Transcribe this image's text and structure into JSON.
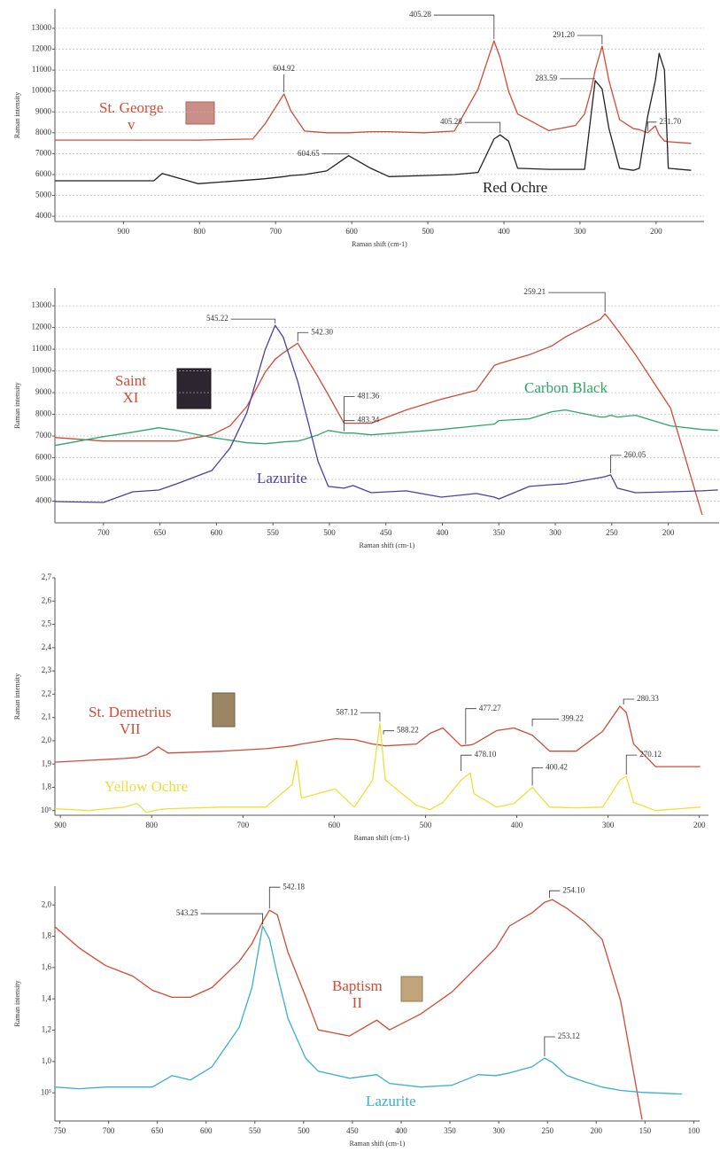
{
  "chart_data": [
    {
      "type": "line",
      "xlabel": "Raman shift (cm-1)",
      "ylabel": "Raman intensity",
      "xlim": [
        990,
        137
      ],
      "ylim": [
        3750,
        13930
      ],
      "grid": true,
      "xticks": [
        900,
        800,
        700,
        600,
        500,
        400,
        300,
        200
      ],
      "yticks": [
        4000,
        5000,
        6000,
        7000,
        8000,
        9000,
        10000,
        11000,
        12000,
        13000
      ],
      "x": [
        990,
        860,
        849,
        802,
        730,
        714,
        689,
        680,
        662,
        633,
        604,
        575,
        551,
        505,
        465,
        434,
        413,
        405,
        394,
        382,
        341,
        306,
        294,
        285,
        280,
        271,
        262,
        248,
        230,
        222,
        211,
        201,
        196,
        189,
        184,
        154
      ],
      "series": [
        {
          "name": "St. George\nv",
          "color": "#cf4b38",
          "values": [
            7650,
            7650,
            7650,
            7650,
            7700,
            8420,
            9860,
            9050,
            8080,
            8000,
            8000,
            8050,
            8050,
            8000,
            8080,
            10100,
            12400,
            11600,
            10000,
            8900,
            8100,
            8350,
            8900,
            10100,
            11000,
            12150,
            10500,
            8630,
            8200,
            8150,
            8000,
            8330,
            7900,
            7600,
            7570,
            7490
          ]
        },
        {
          "name": "Red Ochre",
          "color": "#222222",
          "values": [
            5700,
            5700,
            6050,
            5560,
            5750,
            5800,
            5900,
            5950,
            6000,
            6170,
            6900,
            6300,
            5900,
            5950,
            6000,
            6100,
            7700,
            7900,
            7600,
            6300,
            6250,
            6250,
            6250,
            9000,
            10500,
            10100,
            8200,
            6300,
            6200,
            6300,
            8800,
            10500,
            11800,
            11000,
            6300,
            6200
          ]
        }
      ],
      "annotations": [
        {
          "text": "405.28",
          "x": 413,
          "y": 12400
        },
        {
          "text": "604.92",
          "x": 689,
          "y": 9860
        },
        {
          "text": "291.20",
          "x": 271,
          "y": 12150
        },
        {
          "text": "283.59",
          "x": 280,
          "y": 10500
        },
        {
          "text": "405.28",
          "x": 405,
          "y": 7900
        },
        {
          "text": "604.65",
          "x": 604,
          "y": 6900
        },
        {
          "text": "231.70",
          "x": 211,
          "y": 8000
        }
      ]
    },
    {
      "type": "line",
      "xlabel": "Raman shift (cm-1)",
      "ylabel": "Raman intensity",
      "xlim": [
        743,
        155
      ],
      "ylim": [
        3000,
        13820
      ],
      "grid": true,
      "xticks": [
        700,
        650,
        600,
        550,
        500,
        450,
        400,
        350,
        300,
        250,
        200
      ],
      "yticks": [
        4000,
        5000,
        6000,
        7000,
        8000,
        9000,
        10000,
        11000,
        12000,
        13000
      ],
      "x": [
        743,
        700,
        674,
        651,
        635,
        604,
        588,
        573,
        557,
        548,
        541,
        528,
        522,
        510,
        501,
        487,
        479,
        463,
        432,
        401,
        370,
        354,
        350,
        323,
        303,
        291,
        260,
        256,
        251,
        245,
        229,
        198,
        170,
        156
      ],
      "series": [
        {
          "name": "Saint\nXI",
          "color": "#cf4b38",
          "values": [
            6930,
            6770,
            6770,
            6770,
            6770,
            7055,
            7465,
            8367,
            9925,
            10540,
            10827,
            11278,
            10745,
            9720,
            8900,
            7588,
            7588,
            7588,
            8203,
            8695,
            9105,
            10253,
            10335,
            10745,
            11155,
            11565,
            12385,
            12631,
            12303,
            11893,
            10745,
            8285,
            3365,
            null
          ]
        },
        {
          "name": "Carbon Black",
          "color": "#2ea66a",
          "values": [
            6563,
            6973,
            7178,
            7383,
            7260,
            6932,
            6809,
            6686,
            6645,
            6686,
            6727,
            6768,
            6850,
            7055,
            7260,
            7137,
            7137,
            7055,
            7178,
            7301,
            7465,
            7547,
            7711,
            7793,
            8121,
            8203,
            7875,
            7875,
            7957,
            7875,
            7957,
            7465,
            7301,
            7260
          ]
        },
        {
          "name": "Lazurite",
          "color": "#4b3fa0",
          "values": [
            3980,
            3940,
            4430,
            4510,
            4800,
            5415,
            6440,
            8080,
            10950,
            12100,
            11565,
            9515,
            8285,
            5825,
            4677,
            4595,
            4718,
            4390,
            4472,
            4185,
            4350,
            4185,
            4100,
            4677,
            4759,
            4800,
            5087,
            5128,
            5210,
            4595,
            4390,
            4430,
            4472,
            4513
          ]
        }
      ],
      "annotations": [
        {
          "text": "545.22",
          "x": 548,
          "y": 12100
        },
        {
          "text": "542.30",
          "x": 528,
          "y": 11278
        },
        {
          "text": "481.36",
          "x": 487,
          "y": 7588
        },
        {
          "text": "483.34",
          "x": 487,
          "y": 7137
        },
        {
          "text": "259.21",
          "x": 256,
          "y": 12631
        },
        {
          "text": "260.05",
          "x": 251,
          "y": 5210
        }
      ]
    },
    {
      "type": "line",
      "xlabel": "Raman shift (cm-1)",
      "ylabel": "Raman intensity",
      "xlim": [
        906,
        190
      ],
      "ylim": [
        1.68,
        2.7
      ],
      "grid": false,
      "xticks": [
        900,
        800,
        700,
        600,
        500,
        400,
        300,
        200
      ],
      "yticks": [
        {
          "value": 1.7,
          "label": "10⁵"
        },
        {
          "value": 1.8,
          "label": "1,8"
        },
        {
          "value": 1.9,
          "label": "1,9"
        },
        {
          "value": 2.0,
          "label": "2,0"
        },
        {
          "value": 2.1,
          "label": "2,1"
        },
        {
          "value": 2.2,
          "label": "2,2"
        },
        {
          "value": 2.3,
          "label": "2,3"
        },
        {
          "value": 2.4,
          "label": "2,4"
        },
        {
          "value": 2.5,
          "label": "2,5"
        },
        {
          "value": 2.6,
          "label": "2,6"
        },
        {
          "value": 2.7,
          "label": "2,7"
        }
      ],
      "x": [
        906,
        869,
        830,
        816,
        806,
        793,
        782,
        723,
        675,
        646,
        641,
        636,
        599,
        578,
        558,
        550,
        544,
        510,
        495,
        481,
        461,
        451,
        447,
        422,
        403,
        383,
        364,
        335,
        306,
        287,
        280,
        272,
        248,
        199
      ],
      "series": [
        {
          "name": "St. Demetrius\nVII",
          "color": "#cf4b38",
          "values": [
            1.908,
            1.916,
            1.924,
            1.928,
            1.939,
            1.974,
            1.947,
            1.955,
            1.966,
            1.978,
            1.982,
            1.986,
            2.009,
            2.005,
            1.986,
            1.982,
            1.978,
            1.986,
            2.032,
            2.055,
            1.978,
            1.982,
            1.986,
            2.044,
            2.055,
            2.024,
            1.955,
            1.955,
            2.04,
            2.148,
            2.121,
            1.986,
            1.889,
            1.889
          ]
        },
        {
          "name": "Yellow Ochre",
          "color": "#ece03a",
          "values": [
            1.708,
            1.7,
            1.715,
            1.731,
            1.692,
            1.704,
            1.708,
            1.715,
            1.715,
            1.812,
            1.916,
            1.754,
            1.793,
            1.715,
            1.831,
            2.075,
            1.831,
            1.723,
            1.704,
            1.735,
            1.831,
            1.862,
            1.773,
            1.715,
            1.731,
            1.8,
            1.715,
            1.712,
            1.715,
            1.831,
            1.847,
            1.735,
            1.7,
            1.715
          ]
        }
      ],
      "annotations": [
        {
          "text": "587.12",
          "x": 550,
          "y": 2.075
        },
        {
          "text": "588.22",
          "x": 546,
          "y": 2.02
        },
        {
          "text": "477.27",
          "x": 456,
          "y": 1.978
        },
        {
          "text": "399.22",
          "x": 383,
          "y": 2.055
        },
        {
          "text": "280.33",
          "x": 283,
          "y": 2.148
        },
        {
          "text": "478.10",
          "x": 461,
          "y": 1.862
        },
        {
          "text": "400.42",
          "x": 383,
          "y": 1.8
        },
        {
          "text": "270.12",
          "x": 280,
          "y": 1.847
        }
      ]
    },
    {
      "type": "line",
      "xlabel": "Raman shift (cm-1)",
      "ylabel": "Raman intensity",
      "xlim": [
        755,
        94
      ],
      "ylim": [
        0.62,
        2.12
      ],
      "grid": false,
      "xticks": [
        750,
        700,
        650,
        600,
        550,
        500,
        450,
        400,
        350,
        300,
        250,
        200,
        150,
        100
      ],
      "yticks": [
        {
          "value": 0.8,
          "label": "10⁵"
        },
        {
          "value": 1.0,
          "label": "1,0"
        },
        {
          "value": 1.2,
          "label": "1,2"
        },
        {
          "value": 1.4,
          "label": "1,4"
        },
        {
          "value": 1.6,
          "label": "1,6"
        },
        {
          "value": 1.8,
          "label": "1,8"
        },
        {
          "value": 2.0,
          "label": "2,0"
        }
      ],
      "x": [
        755,
        730,
        703,
        675,
        655,
        635,
        616,
        594,
        566,
        553,
        542,
        535,
        527,
        516,
        498,
        485,
        453,
        425,
        412,
        380,
        348,
        321,
        303,
        289,
        266,
        253,
        245,
        230,
        212,
        194,
        175,
        153,
        112
      ],
      "series": [
        {
          "name": "Baptism\nII",
          "color": "#cf4b38",
          "values": [
            1.86,
            1.725,
            1.612,
            1.545,
            1.455,
            1.41,
            1.41,
            1.472,
            1.64,
            1.753,
            1.893,
            1.966,
            1.938,
            1.697,
            1.416,
            1.202,
            1.163,
            1.264,
            1.202,
            1.303,
            1.444,
            1.612,
            1.725,
            1.865,
            1.949,
            2.017,
            2.034,
            1.978,
            1.893,
            1.781,
            1.388,
            0.629,
            null
          ]
        },
        {
          "name": "Lazurite",
          "color": "#3aaed0",
          "values": [
            0.837,
            0.826,
            0.837,
            0.837,
            0.837,
            0.91,
            0.882,
            0.966,
            1.219,
            1.472,
            1.865,
            1.781,
            1.556,
            1.275,
            1.022,
            0.938,
            0.893,
            0.916,
            0.86,
            0.837,
            0.848,
            0.916,
            0.91,
            0.927,
            0.966,
            1.022,
            0.994,
            0.91,
            0.871,
            0.837,
            0.815,
            0.803,
            0.792
          ]
        }
      ],
      "annotations": [
        {
          "text": "543.25",
          "x": 542,
          "y": 1.865
        },
        {
          "text": "542.18",
          "x": 535,
          "y": 1.966
        },
        {
          "text": "254.10",
          "x": 248,
          "y": 2.034
        },
        {
          "text": "253.12",
          "x": 253,
          "y": 1.022
        }
      ]
    }
  ]
}
